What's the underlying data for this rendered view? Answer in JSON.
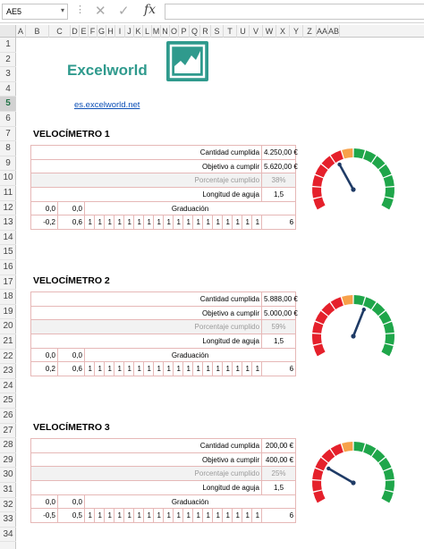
{
  "formula_bar": {
    "name_box": "AE5",
    "formula": ""
  },
  "columns": [
    "A",
    "B",
    "C",
    "D",
    "E",
    "F",
    "G",
    "H",
    "I",
    "J",
    "K",
    "L",
    "M",
    "N",
    "O",
    "P",
    "Q",
    "R",
    "S",
    "T",
    "U",
    "V",
    "W",
    "X",
    "Y",
    "Z",
    "AA",
    "AB"
  ],
  "rows": [
    "1",
    "2",
    "3",
    "4",
    "5",
    "6",
    "7",
    "8",
    "9",
    "10",
    "11",
    "12",
    "13",
    "14",
    "15",
    "16",
    "17",
    "18",
    "19",
    "20",
    "21",
    "22",
    "23",
    "24",
    "25",
    "26",
    "27",
    "28",
    "29",
    "30",
    "31",
    "32",
    "33",
    "34"
  ],
  "selected_row": "5",
  "logo": {
    "text": "Excelworld",
    "icon": "line-chart-icon",
    "color": "#2f9a8d"
  },
  "link": "es.excelworld.net",
  "labels": {
    "cantidad": "Cantidad cumplida",
    "objetivo": "Objetivo a cumplir",
    "porcentaje": "Porcentaje cumplido",
    "longitud": "Longitud de aguja",
    "graduacion": "Graduación"
  },
  "gauge_colors": {
    "red": "#e5202b",
    "orange": "#f7a14a",
    "green": "#1fa64a",
    "needle": "#1f3b66"
  },
  "sections": [
    {
      "title": "VELOCÍMETRO 1",
      "cantidad": "4.250,00 €",
      "objetivo": "5.620,00 €",
      "porcentaje": "38%",
      "longitud": "1,5",
      "row12": [
        "0,0",
        "0,0"
      ],
      "row13": [
        "-0,2",
        "0,6",
        "1",
        "1",
        "1",
        "1",
        "1",
        "1",
        "1",
        "1",
        "1",
        "1",
        "1",
        "1",
        "1",
        "1",
        "1",
        "1",
        "1",
        "1",
        "6"
      ],
      "needle_fraction": 0.38
    },
    {
      "title": "VELOCÍMETRO 2",
      "cantidad": "5.888,00 €",
      "objetivo": "5.000,00 €",
      "porcentaje": "59%",
      "longitud": "1,5",
      "row12": [
        "0,0",
        "0,0"
      ],
      "row13": [
        "0,2",
        "0,6",
        "1",
        "1",
        "1",
        "1",
        "1",
        "1",
        "1",
        "1",
        "1",
        "1",
        "1",
        "1",
        "1",
        "1",
        "1",
        "1",
        "1",
        "1",
        "6"
      ],
      "needle_fraction": 0.59
    },
    {
      "title": "VELOCÍMETRO 3",
      "cantidad": "200,00 €",
      "objetivo": "400,00 €",
      "porcentaje": "25%",
      "longitud": "1,5",
      "row12": [
        "0,0",
        "0,0"
      ],
      "row13": [
        "-0,5",
        "0,5",
        "1",
        "1",
        "1",
        "1",
        "1",
        "1",
        "1",
        "1",
        "1",
        "1",
        "1",
        "1",
        "1",
        "1",
        "1",
        "1",
        "1",
        "1",
        "6"
      ],
      "needle_fraction": 0.25
    }
  ]
}
